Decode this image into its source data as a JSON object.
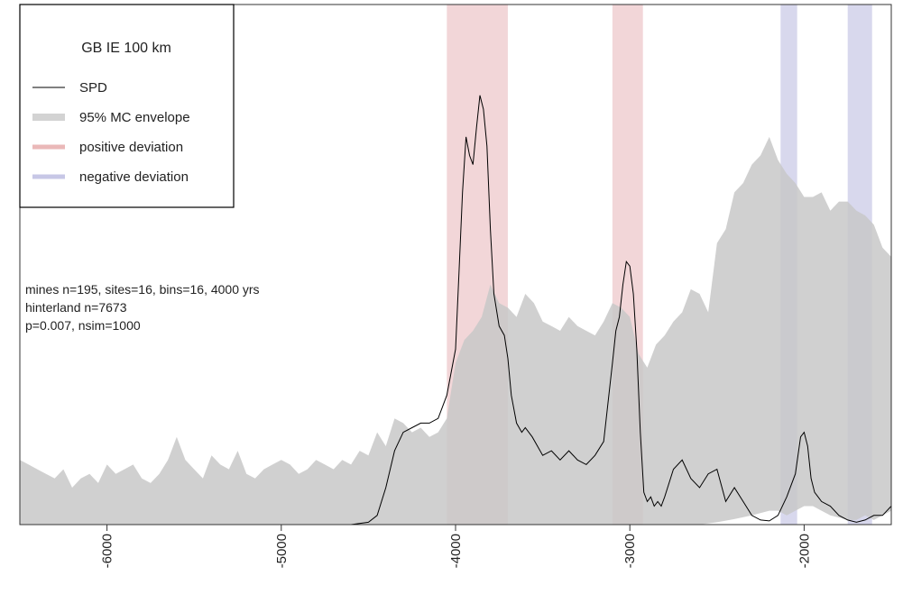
{
  "chart_data": {
    "type": "area",
    "xlim": [
      -6500,
      -1500
    ],
    "ylim": [
      0,
      1
    ],
    "x_ticks": [
      -6000,
      -5000,
      -4000,
      -3000,
      -2000
    ],
    "x_tick_labels": [
      "-6000",
      "-5000",
      "-4000",
      "-3000",
      "-2000"
    ],
    "legend": {
      "title": "GB IE 100 km",
      "position": "top-left",
      "entries": [
        {
          "label": "SPD",
          "style": "line",
          "color": "#000000"
        },
        {
          "label": "95% MC envelope",
          "style": "band",
          "color": "#d3d3d3"
        },
        {
          "label": "positive deviation",
          "style": "band",
          "color": "#e8b4b8"
        },
        {
          "label": "negative deviation",
          "style": "band",
          "color": "#c7c7e6"
        }
      ]
    },
    "annotations": [
      "mines n=195, sites=16, bins=16, 4000 yrs",
      "hinterland n=7673",
      "p=0.007, nsim=1000"
    ],
    "positive_deviation_ranges": [
      [
        -4050,
        -3700
      ],
      [
        -3100,
        -2925
      ]
    ],
    "negative_deviation_ranges": [
      [
        -2135,
        -2040
      ],
      [
        -1750,
        -1610
      ]
    ],
    "envelope_upper": {
      "x": [
        -6500,
        -6450,
        -6400,
        -6350,
        -6300,
        -6250,
        -6200,
        -6150,
        -6100,
        -6050,
        -6000,
        -5950,
        -5900,
        -5850,
        -5800,
        -5750,
        -5700,
        -5650,
        -5600,
        -5550,
        -5500,
        -5450,
        -5400,
        -5350,
        -5300,
        -5250,
        -5200,
        -5150,
        -5100,
        -5050,
        -5000,
        -4950,
        -4900,
        -4850,
        -4800,
        -4750,
        -4700,
        -4650,
        -4600,
        -4550,
        -4500,
        -4450,
        -4400,
        -4350,
        -4300,
        -4250,
        -4200,
        -4150,
        -4100,
        -4050,
        -4000,
        -3950,
        -3900,
        -3850,
        -3800,
        -3750,
        -3700,
        -3650,
        -3600,
        -3550,
        -3500,
        -3450,
        -3400,
        -3350,
        -3300,
        -3250,
        -3200,
        -3150,
        -3100,
        -3050,
        -3000,
        -2950,
        -2900,
        -2850,
        -2800,
        -2750,
        -2700,
        -2650,
        -2600,
        -2550,
        -2500,
        -2450,
        -2400,
        -2350,
        -2300,
        -2250,
        -2200,
        -2150,
        -2100,
        -2050,
        -2000,
        -1950,
        -1900,
        -1850,
        -1800,
        -1750,
        -1700,
        -1650,
        -1600,
        -1550,
        -1500
      ],
      "y": [
        0.14,
        0.13,
        0.12,
        0.11,
        0.1,
        0.12,
        0.08,
        0.1,
        0.11,
        0.09,
        0.13,
        0.11,
        0.12,
        0.13,
        0.1,
        0.09,
        0.11,
        0.14,
        0.19,
        0.14,
        0.12,
        0.1,
        0.15,
        0.13,
        0.12,
        0.16,
        0.11,
        0.1,
        0.12,
        0.13,
        0.14,
        0.13,
        0.11,
        0.12,
        0.14,
        0.13,
        0.12,
        0.14,
        0.13,
        0.16,
        0.15,
        0.2,
        0.17,
        0.23,
        0.22,
        0.2,
        0.21,
        0.19,
        0.2,
        0.23,
        0.35,
        0.4,
        0.42,
        0.45,
        0.52,
        0.48,
        0.47,
        0.45,
        0.5,
        0.48,
        0.44,
        0.43,
        0.42,
        0.45,
        0.43,
        0.42,
        0.41,
        0.44,
        0.48,
        0.47,
        0.45,
        0.37,
        0.34,
        0.39,
        0.41,
        0.44,
        0.46,
        0.51,
        0.5,
        0.46,
        0.61,
        0.64,
        0.72,
        0.74,
        0.78,
        0.8,
        0.84,
        0.79,
        0.76,
        0.74,
        0.71,
        0.71,
        0.72,
        0.68,
        0.7,
        0.7,
        0.68,
        0.67,
        0.65,
        0.6,
        0.58
      ]
    },
    "envelope_lower": {
      "x": [
        -6500,
        -2600,
        -2500,
        -2400,
        -2300,
        -2200,
        -2150,
        -2100,
        -2050,
        -2000,
        -1950,
        -1900,
        -1850,
        -1800,
        -1750,
        -1700,
        -1650,
        -1600,
        -1550,
        -1500
      ],
      "y": [
        0.0,
        0.0,
        0.005,
        0.012,
        0.02,
        0.03,
        0.03,
        0.02,
        0.03,
        0.04,
        0.04,
        0.03,
        0.02,
        0.015,
        0.01,
        0.01,
        0.02,
        0.01,
        0.02,
        0.03
      ]
    },
    "spd": {
      "x": [
        -6500,
        -4600,
        -4500,
        -4450,
        -4400,
        -4350,
        -4300,
        -4250,
        -4200,
        -4150,
        -4100,
        -4050,
        -4000,
        -3980,
        -3960,
        -3940,
        -3920,
        -3900,
        -3880,
        -3860,
        -3840,
        -3820,
        -3800,
        -3780,
        -3750,
        -3720,
        -3700,
        -3680,
        -3650,
        -3620,
        -3600,
        -3560,
        -3500,
        -3450,
        -3400,
        -3350,
        -3300,
        -3250,
        -3200,
        -3150,
        -3100,
        -3080,
        -3060,
        -3040,
        -3020,
        -3000,
        -2980,
        -2960,
        -2940,
        -2920,
        -2900,
        -2880,
        -2860,
        -2840,
        -2820,
        -2800,
        -2750,
        -2700,
        -2650,
        -2600,
        -2550,
        -2500,
        -2450,
        -2400,
        -2350,
        -2300,
        -2250,
        -2200,
        -2150,
        -2100,
        -2050,
        -2020,
        -2000,
        -1980,
        -1960,
        -1940,
        -1920,
        -1900,
        -1850,
        -1800,
        -1750,
        -1700,
        -1650,
        -1600,
        -1550,
        -1500
      ],
      "y": [
        0.0,
        0.0,
        0.005,
        0.02,
        0.08,
        0.16,
        0.2,
        0.21,
        0.22,
        0.22,
        0.23,
        0.28,
        0.38,
        0.55,
        0.72,
        0.84,
        0.8,
        0.78,
        0.86,
        0.93,
        0.9,
        0.82,
        0.64,
        0.5,
        0.43,
        0.41,
        0.36,
        0.28,
        0.22,
        0.2,
        0.21,
        0.19,
        0.15,
        0.16,
        0.14,
        0.16,
        0.14,
        0.13,
        0.15,
        0.18,
        0.35,
        0.42,
        0.45,
        0.52,
        0.57,
        0.56,
        0.5,
        0.38,
        0.2,
        0.07,
        0.05,
        0.06,
        0.04,
        0.05,
        0.04,
        0.06,
        0.12,
        0.14,
        0.1,
        0.08,
        0.11,
        0.12,
        0.05,
        0.08,
        0.05,
        0.02,
        0.01,
        0.008,
        0.02,
        0.06,
        0.11,
        0.19,
        0.2,
        0.17,
        0.1,
        0.07,
        0.06,
        0.05,
        0.04,
        0.02,
        0.01,
        0.005,
        0.01,
        0.02,
        0.02,
        0.04
      ]
    }
  }
}
